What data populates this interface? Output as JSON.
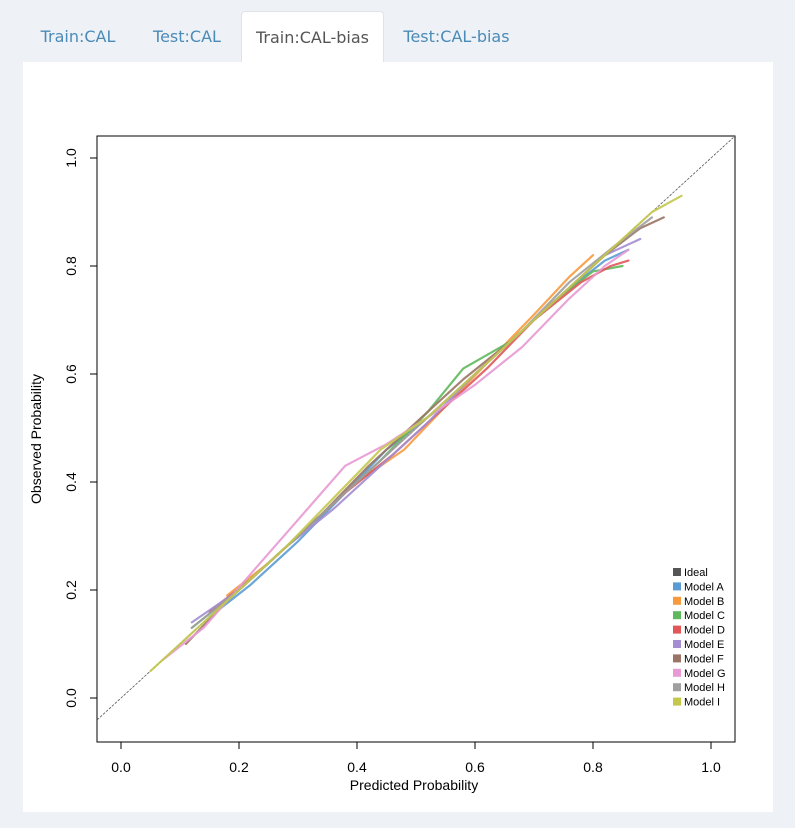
{
  "tabs": [
    {
      "label": "Train:CAL",
      "active": false
    },
    {
      "label": "Test:CAL",
      "active": false
    },
    {
      "label": "Train:CAL-bias",
      "active": true
    },
    {
      "label": "Test:CAL-bias",
      "active": false
    }
  ],
  "chart_data": {
    "type": "line",
    "title": "",
    "xlabel": "Predicted Probability",
    "ylabel": "Observed  Probability",
    "xlim": [
      0.0,
      1.0
    ],
    "ylim": [
      0.0,
      1.0
    ],
    "xticks": [
      "0.0",
      "0.2",
      "0.4",
      "0.6",
      "0.8",
      "1.0"
    ],
    "yticks": [
      "0.0",
      "0.2",
      "0.4",
      "0.6",
      "0.8",
      "1.0"
    ],
    "grid": false,
    "legend_position": "bottom-right",
    "series": [
      {
        "name": "Ideal",
        "color": "#555555",
        "dashed": true,
        "points": [
          [
            -0.05,
            -0.05
          ],
          [
            1.05,
            1.05
          ]
        ]
      },
      {
        "name": "Model A",
        "color": "#5b9bd5",
        "points": [
          [
            0.15,
            0.15
          ],
          [
            0.22,
            0.21
          ],
          [
            0.3,
            0.29
          ],
          [
            0.38,
            0.38
          ],
          [
            0.45,
            0.46
          ],
          [
            0.52,
            0.52
          ],
          [
            0.6,
            0.6
          ],
          [
            0.68,
            0.68
          ],
          [
            0.75,
            0.75
          ],
          [
            0.82,
            0.81
          ],
          [
            0.86,
            0.83
          ]
        ]
      },
      {
        "name": "Model B",
        "color": "#f79a3e",
        "points": [
          [
            0.18,
            0.19
          ],
          [
            0.25,
            0.25
          ],
          [
            0.32,
            0.32
          ],
          [
            0.4,
            0.4
          ],
          [
            0.48,
            0.46
          ],
          [
            0.55,
            0.54
          ],
          [
            0.62,
            0.62
          ],
          [
            0.7,
            0.71
          ],
          [
            0.76,
            0.78
          ],
          [
            0.8,
            0.82
          ]
        ]
      },
      {
        "name": "Model C",
        "color": "#5fb85c",
        "points": [
          [
            0.12,
            0.13
          ],
          [
            0.2,
            0.2
          ],
          [
            0.28,
            0.28
          ],
          [
            0.36,
            0.36
          ],
          [
            0.44,
            0.44
          ],
          [
            0.52,
            0.53
          ],
          [
            0.58,
            0.61
          ],
          [
            0.66,
            0.66
          ],
          [
            0.74,
            0.74
          ],
          [
            0.8,
            0.79
          ],
          [
            0.85,
            0.8
          ]
        ]
      },
      {
        "name": "Model D",
        "color": "#e15759",
        "points": [
          [
            0.15,
            0.16
          ],
          [
            0.22,
            0.22
          ],
          [
            0.3,
            0.3
          ],
          [
            0.38,
            0.38
          ],
          [
            0.46,
            0.45
          ],
          [
            0.54,
            0.53
          ],
          [
            0.62,
            0.61
          ],
          [
            0.7,
            0.7
          ],
          [
            0.78,
            0.77
          ],
          [
            0.83,
            0.8
          ],
          [
            0.86,
            0.81
          ]
        ]
      },
      {
        "name": "Model E",
        "color": "#a48dd1",
        "points": [
          [
            0.12,
            0.14
          ],
          [
            0.2,
            0.2
          ],
          [
            0.28,
            0.28
          ],
          [
            0.36,
            0.35
          ],
          [
            0.44,
            0.43
          ],
          [
            0.52,
            0.51
          ],
          [
            0.6,
            0.6
          ],
          [
            0.68,
            0.68
          ],
          [
            0.76,
            0.76
          ],
          [
            0.82,
            0.82
          ],
          [
            0.88,
            0.85
          ]
        ]
      },
      {
        "name": "Model F",
        "color": "#9c7466",
        "points": [
          [
            0.11,
            0.1
          ],
          [
            0.18,
            0.18
          ],
          [
            0.26,
            0.26
          ],
          [
            0.34,
            0.34
          ],
          [
            0.42,
            0.43
          ],
          [
            0.5,
            0.51
          ],
          [
            0.58,
            0.59
          ],
          [
            0.66,
            0.66
          ],
          [
            0.74,
            0.74
          ],
          [
            0.82,
            0.82
          ],
          [
            0.88,
            0.87
          ],
          [
            0.92,
            0.89
          ]
        ]
      },
      {
        "name": "Model G",
        "color": "#e79ad3",
        "points": [
          [
            0.07,
            0.07
          ],
          [
            0.14,
            0.13
          ],
          [
            0.22,
            0.23
          ],
          [
            0.3,
            0.33
          ],
          [
            0.38,
            0.43
          ],
          [
            0.45,
            0.47
          ],
          [
            0.52,
            0.52
          ],
          [
            0.6,
            0.58
          ],
          [
            0.68,
            0.65
          ],
          [
            0.76,
            0.74
          ],
          [
            0.82,
            0.8
          ],
          [
            0.86,
            0.83
          ]
        ]
      },
      {
        "name": "Model H",
        "color": "#9f9f9f",
        "points": [
          [
            0.12,
            0.13
          ],
          [
            0.2,
            0.2
          ],
          [
            0.28,
            0.28
          ],
          [
            0.36,
            0.36
          ],
          [
            0.44,
            0.44
          ],
          [
            0.52,
            0.52
          ],
          [
            0.6,
            0.6
          ],
          [
            0.68,
            0.68
          ],
          [
            0.76,
            0.77
          ],
          [
            0.84,
            0.84
          ],
          [
            0.9,
            0.89
          ]
        ]
      },
      {
        "name": "Model I",
        "color": "#c3c84b",
        "points": [
          [
            0.05,
            0.05
          ],
          [
            0.12,
            0.12
          ],
          [
            0.2,
            0.2
          ],
          [
            0.28,
            0.28
          ],
          [
            0.36,
            0.37
          ],
          [
            0.44,
            0.46
          ],
          [
            0.52,
            0.52
          ],
          [
            0.6,
            0.6
          ],
          [
            0.68,
            0.68
          ],
          [
            0.76,
            0.76
          ],
          [
            0.84,
            0.84
          ],
          [
            0.9,
            0.9
          ],
          [
            0.95,
            0.93
          ]
        ]
      }
    ]
  }
}
